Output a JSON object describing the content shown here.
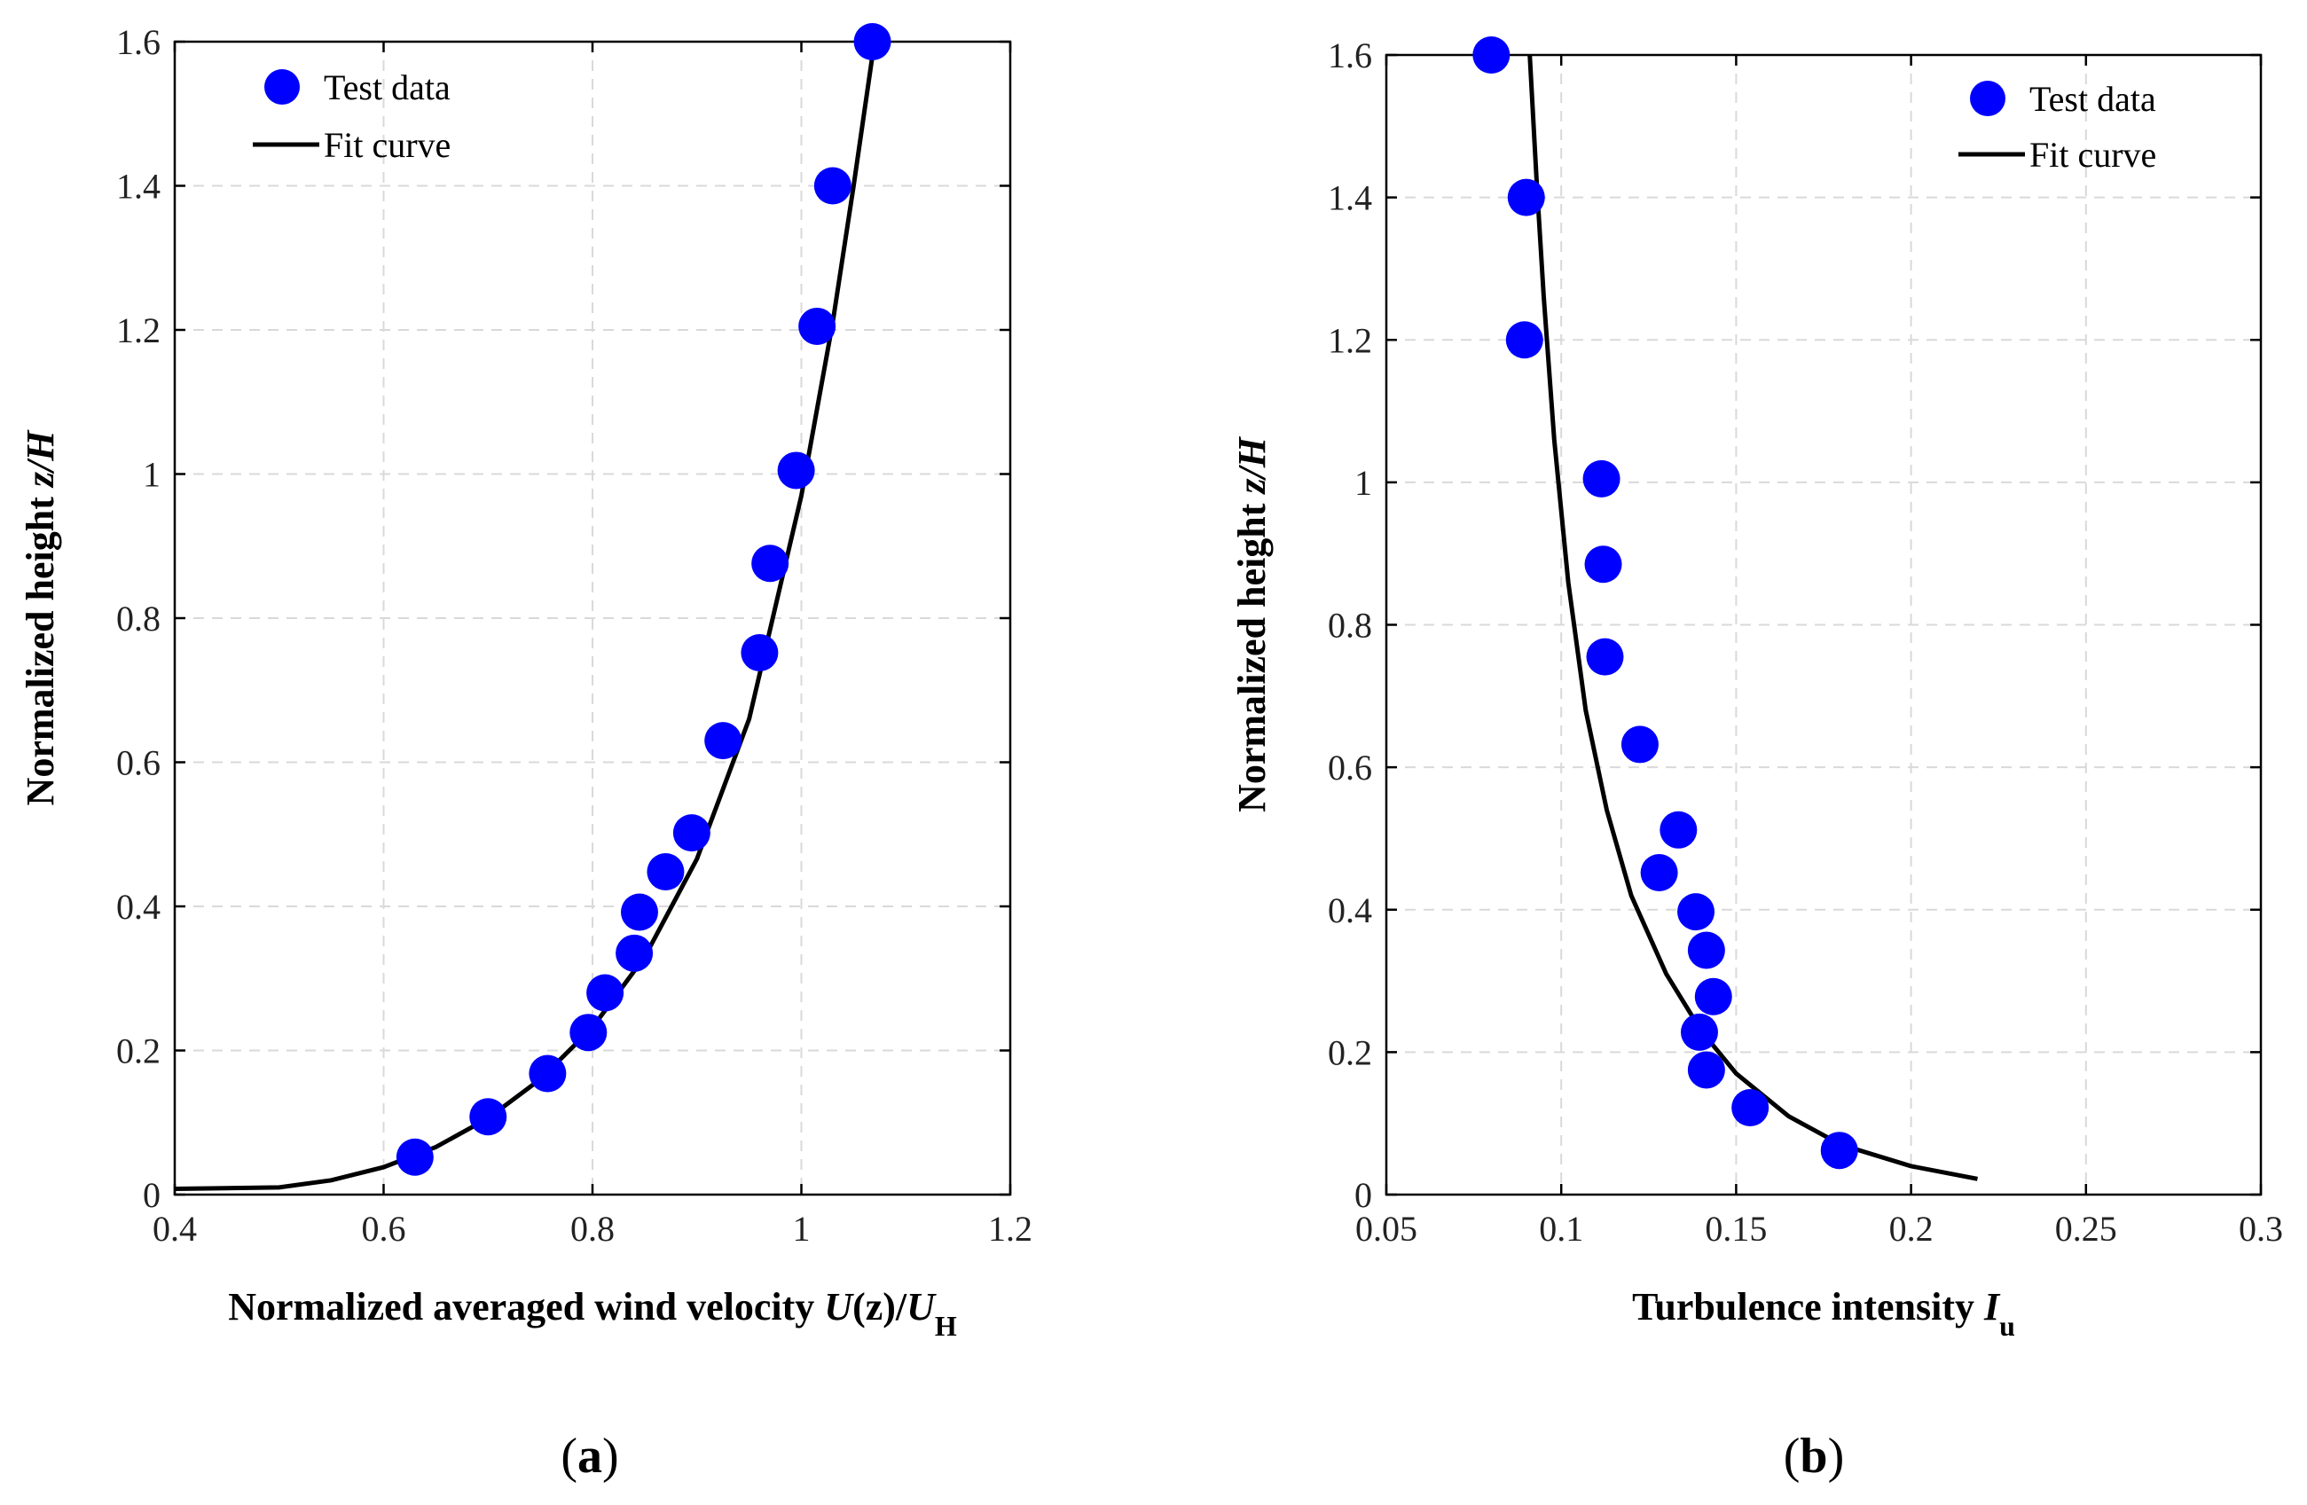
{
  "colors": {
    "marker": "#0000ff",
    "curve": "#000000",
    "grid": "#d9d9d9"
  },
  "chart_data": [
    {
      "type": "scatter",
      "panel_label": {
        "open": "(",
        "letter": "a",
        "close": ")"
      },
      "xlabel_parts": [
        {
          "text": "Normalized averaged wind velocity ",
          "style": "bold"
        },
        {
          "text": "U",
          "style": "bold-italic"
        },
        {
          "text": "(z)/",
          "style": "bold"
        },
        {
          "text": "U",
          "style": "bold-italic"
        },
        {
          "text": "H",
          "style": "bold-sub"
        }
      ],
      "ylabel_parts": [
        {
          "text": "Normalized height ",
          "style": "bold"
        },
        {
          "text": "z/H",
          "style": "bold-italic"
        }
      ],
      "xlim": [
        0.4,
        1.2
      ],
      "ylim": [
        0,
        1.6
      ],
      "grid": true,
      "x_ticks": [
        0.4,
        0.6,
        0.8,
        1.0,
        1.2
      ],
      "x_tick_labels": [
        "0.4",
        "0.6",
        "0.8",
        "1",
        "1.2"
      ],
      "y_ticks": [
        0,
        0.2,
        0.4,
        0.6,
        0.8,
        1.0,
        1.2,
        1.4,
        1.6
      ],
      "y_tick_labels": [
        "0",
        "0.2",
        "0.4",
        "0.6",
        "0.8",
        "1",
        "1.2",
        "1.4",
        "1.6"
      ],
      "legend": {
        "placement": "top-left",
        "entries": [
          "Test data",
          "Fit curve"
        ]
      },
      "series": [
        {
          "name": "Test data",
          "kind": "markers",
          "x": [
            0.63,
            0.7,
            0.757,
            0.796,
            0.812,
            0.84,
            0.845,
            0.87,
            0.895,
            0.925,
            0.96,
            0.97,
            0.995,
            1.015,
            1.03,
            1.068
          ],
          "y": [
            0.052,
            0.108,
            0.168,
            0.225,
            0.28,
            0.335,
            0.392,
            0.448,
            0.502,
            0.63,
            0.752,
            0.876,
            1.005,
            1.205,
            1.4,
            1.6
          ]
        },
        {
          "name": "Fit curve",
          "kind": "line",
          "x": [
            0.4,
            0.5,
            0.55,
            0.6,
            0.65,
            0.7,
            0.75,
            0.8,
            0.85,
            0.9,
            0.95,
            1.0,
            1.03,
            1.05,
            1.07
          ],
          "y": [
            0.008,
            0.01,
            0.02,
            0.038,
            0.066,
            0.106,
            0.16,
            0.232,
            0.33,
            0.466,
            0.66,
            0.97,
            1.21,
            1.4,
            1.6
          ]
        }
      ]
    },
    {
      "type": "scatter",
      "panel_label": {
        "open": "(",
        "letter": "b",
        "close": ")"
      },
      "xlabel_parts": [
        {
          "text": "Turbulence intensity ",
          "style": "bold"
        },
        {
          "text": "I",
          "style": "bold-italic"
        },
        {
          "text": "u",
          "style": "bold-sub"
        }
      ],
      "ylabel_parts": [
        {
          "text": "Normalized height ",
          "style": "bold"
        },
        {
          "text": "z/H",
          "style": "bold-italic"
        }
      ],
      "xlim": [
        0.05,
        0.3
      ],
      "ylim": [
        0,
        1.6
      ],
      "grid": true,
      "x_ticks": [
        0.05,
        0.1,
        0.15,
        0.2,
        0.25,
        0.3
      ],
      "x_tick_labels": [
        "0.05",
        "0.1",
        "0.15",
        "0.2",
        "0.25",
        "0.3"
      ],
      "y_ticks": [
        0,
        0.2,
        0.4,
        0.6,
        0.8,
        1.0,
        1.2,
        1.4,
        1.6
      ],
      "y_tick_labels": [
        "0",
        "0.2",
        "0.4",
        "0.6",
        "0.8",
        "1",
        "1.2",
        "1.4",
        "1.6"
      ],
      "legend": {
        "placement": "top-right",
        "entries": [
          "Test data",
          "Fit curve"
        ]
      },
      "series": [
        {
          "name": "Test data",
          "kind": "markers",
          "x": [
            0.08,
            0.09,
            0.0895,
            0.1115,
            0.112,
            0.1125,
            0.1225,
            0.128,
            0.1335,
            0.1385,
            0.1415,
            0.1435,
            0.1395,
            0.1415,
            0.154,
            0.1795
          ],
          "y": [
            1.6,
            1.4,
            1.2,
            1.005,
            0.885,
            0.755,
            0.632,
            0.452,
            0.512,
            0.397,
            0.343,
            0.278,
            0.228,
            0.175,
            0.122,
            0.062
          ]
        },
        {
          "name": "Fit curve",
          "kind": "line",
          "x": [
            0.091,
            0.093,
            0.095,
            0.098,
            0.102,
            0.107,
            0.113,
            0.12,
            0.13,
            0.14,
            0.15,
            0.165,
            0.18,
            0.2,
            0.219
          ],
          "y": [
            1.6,
            1.42,
            1.26,
            1.06,
            0.86,
            0.68,
            0.54,
            0.42,
            0.31,
            0.23,
            0.17,
            0.11,
            0.07,
            0.04,
            0.022
          ]
        }
      ]
    }
  ]
}
